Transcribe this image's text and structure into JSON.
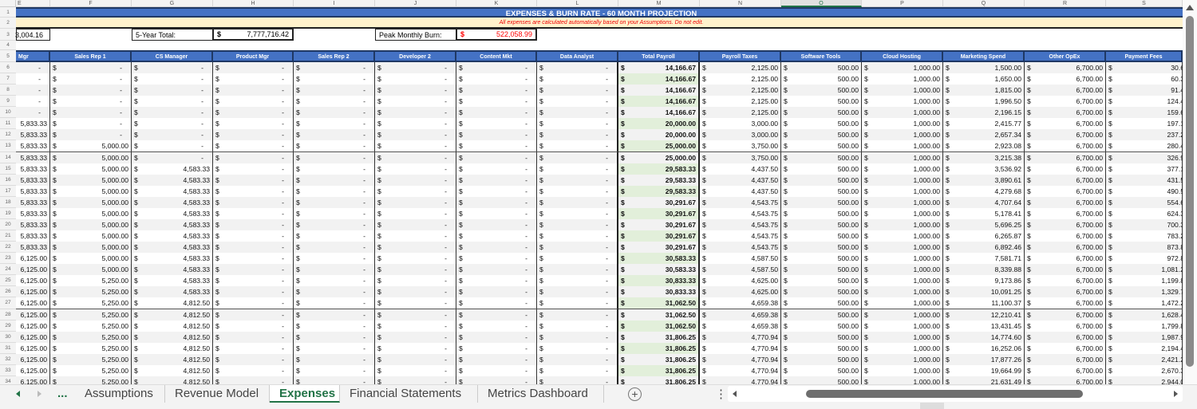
{
  "column_letters": [
    "E",
    "F",
    "G",
    "H",
    "I",
    "J",
    "K",
    "L",
    "M",
    "N",
    "O",
    "P",
    "Q",
    "R",
    "S"
  ],
  "selected_column": "O",
  "title": "EXPENSES & BURN RATE - 60 MONTH PROJECTION",
  "note": "All expenses are calculated automatically based on your Assumptions. Do not edit.",
  "summary": {
    "first_value": "3,004.16",
    "five_year_label": "5-Year Total:",
    "five_year_value": "7,777,716.42",
    "peak_label": "Peak Monthly Burn:",
    "peak_value": "522,058.99",
    "peak_color": "#ff0000"
  },
  "currency_symbol": "$",
  "headers": [
    "Mgr",
    "Sales Rep 1",
    "CS Manager",
    "Product Mgr",
    "Sales Rep 2",
    "Developer 2",
    "Content Mkt",
    "Data Analyst",
    "Total Payroll",
    "Payroll Taxes",
    "Software Tools",
    "Cloud Hosting",
    "Marketing Spend",
    "Other OpEx",
    "Payment Fees"
  ],
  "header_color": "#4472c4",
  "rows": [
    {
      "n": "1"
    },
    {
      "n": "2"
    },
    {
      "n": "3"
    },
    {
      "n": "4"
    },
    {
      "n": "5"
    },
    {
      "n": "6",
      "cells": [
        "-",
        "-",
        "-",
        "-",
        "-",
        "-",
        "-",
        "-",
        "14,166.67",
        "2,125.00",
        "500.00",
        "1,000.00",
        "1,500.00",
        "6,700.00",
        "30.6"
      ]
    },
    {
      "n": "7",
      "cells": [
        "-",
        "-",
        "-",
        "-",
        "-",
        "-",
        "-",
        "-",
        "14,166.67",
        "2,125.00",
        "500.00",
        "1,000.00",
        "1,650.00",
        "6,700.00",
        "60.3"
      ]
    },
    {
      "n": "8",
      "cells": [
        "-",
        "-",
        "-",
        "-",
        "-",
        "-",
        "-",
        "-",
        "14,166.67",
        "2,125.00",
        "500.00",
        "1,000.00",
        "1,815.00",
        "6,700.00",
        "91.4"
      ]
    },
    {
      "n": "9",
      "cells": [
        "-",
        "-",
        "-",
        "-",
        "-",
        "-",
        "-",
        "-",
        "14,166.67",
        "2,125.00",
        "500.00",
        "1,000.00",
        "1,996.50",
        "6,700.00",
        "124.4"
      ]
    },
    {
      "n": "10",
      "cells": [
        "-",
        "-",
        "-",
        "-",
        "-",
        "-",
        "-",
        "-",
        "14,166.67",
        "2,125.00",
        "500.00",
        "1,000.00",
        "2,196.15",
        "6,700.00",
        "159.6"
      ]
    },
    {
      "n": "11",
      "cells": [
        "5,833.33",
        "-",
        "-",
        "-",
        "-",
        "-",
        "-",
        "-",
        "20,000.00",
        "3,000.00",
        "500.00",
        "1,000.00",
        "2,415.77",
        "6,700.00",
        "197.1"
      ]
    },
    {
      "n": "12",
      "cells": [
        "5,833.33",
        "-",
        "-",
        "-",
        "-",
        "-",
        "-",
        "-",
        "20,000.00",
        "3,000.00",
        "500.00",
        "1,000.00",
        "2,657.34",
        "6,700.00",
        "237.2"
      ]
    },
    {
      "n": "13",
      "cells": [
        "5,833.33",
        "5,000.00",
        "-",
        "-",
        "-",
        "-",
        "-",
        "-",
        "25,000.00",
        "3,750.00",
        "500.00",
        "1,000.00",
        "2,923.08",
        "6,700.00",
        "280.4"
      ]
    },
    {
      "n": "14",
      "cells": [
        "5,833.33",
        "5,000.00",
        "-",
        "-",
        "-",
        "-",
        "-",
        "-",
        "25,000.00",
        "3,750.00",
        "500.00",
        "1,000.00",
        "3,215.38",
        "6,700.00",
        "326.9"
      ]
    },
    {
      "n": "15",
      "cells": [
        "5,833.33",
        "5,000.00",
        "4,583.33",
        "-",
        "-",
        "-",
        "-",
        "-",
        "29,583.33",
        "4,437.50",
        "500.00",
        "1,000.00",
        "3,536.92",
        "6,700.00",
        "377.1"
      ]
    },
    {
      "n": "16",
      "cells": [
        "5,833.33",
        "5,000.00",
        "4,583.33",
        "-",
        "-",
        "-",
        "-",
        "-",
        "29,583.33",
        "4,437.50",
        "500.00",
        "1,000.00",
        "3,890.61",
        "6,700.00",
        "431.5"
      ]
    },
    {
      "n": "17",
      "cells": [
        "5,833.33",
        "5,000.00",
        "4,583.33",
        "-",
        "-",
        "-",
        "-",
        "-",
        "29,583.33",
        "4,437.50",
        "500.00",
        "1,000.00",
        "4,279.68",
        "6,700.00",
        "490.5"
      ]
    },
    {
      "n": "18",
      "cells": [
        "5,833.33",
        "5,000.00",
        "4,583.33",
        "-",
        "-",
        "-",
        "-",
        "-",
        "30,291.67",
        "4,543.75",
        "500.00",
        "1,000.00",
        "4,707.64",
        "6,700.00",
        "554.6"
      ]
    },
    {
      "n": "19",
      "cells": [
        "5,833.33",
        "5,000.00",
        "4,583.33",
        "-",
        "-",
        "-",
        "-",
        "-",
        "30,291.67",
        "4,543.75",
        "500.00",
        "1,000.00",
        "5,178.41",
        "6,700.00",
        "624.3"
      ]
    },
    {
      "n": "20",
      "cells": [
        "5,833.33",
        "5,000.00",
        "4,583.33",
        "-",
        "-",
        "-",
        "-",
        "-",
        "30,291.67",
        "4,543.75",
        "500.00",
        "1,000.00",
        "5,696.25",
        "6,700.00",
        "700.3"
      ]
    },
    {
      "n": "21",
      "cells": [
        "5,833.33",
        "5,000.00",
        "4,583.33",
        "-",
        "-",
        "-",
        "-",
        "-",
        "30,291.67",
        "4,543.75",
        "500.00",
        "1,000.00",
        "6,265.87",
        "6,700.00",
        "783.2"
      ]
    },
    {
      "n": "22",
      "cells": [
        "5,833.33",
        "5,000.00",
        "4,583.33",
        "-",
        "-",
        "-",
        "-",
        "-",
        "30,291.67",
        "4,543.75",
        "500.00",
        "1,000.00",
        "6,892.46",
        "6,700.00",
        "873.8"
      ]
    },
    {
      "n": "23",
      "cells": [
        "6,125.00",
        "5,000.00",
        "4,583.33",
        "-",
        "-",
        "-",
        "-",
        "-",
        "30,583.33",
        "4,587.50",
        "500.00",
        "1,000.00",
        "7,581.71",
        "6,700.00",
        "972.8"
      ]
    },
    {
      "n": "24",
      "cells": [
        "6,125.00",
        "5,000.00",
        "4,583.33",
        "-",
        "-",
        "-",
        "-",
        "-",
        "30,583.33",
        "4,587.50",
        "500.00",
        "1,000.00",
        "8,339.88",
        "6,700.00",
        "1,081.2"
      ]
    },
    {
      "n": "25",
      "cells": [
        "6,125.00",
        "5,250.00",
        "4,583.33",
        "-",
        "-",
        "-",
        "-",
        "-",
        "30,833.33",
        "4,625.00",
        "500.00",
        "1,000.00",
        "9,173.86",
        "6,700.00",
        "1,199.8"
      ]
    },
    {
      "n": "26",
      "cells": [
        "6,125.00",
        "5,250.00",
        "4,583.33",
        "-",
        "-",
        "-",
        "-",
        "-",
        "30,833.33",
        "4,625.00",
        "500.00",
        "1,000.00",
        "10,091.25",
        "6,700.00",
        "1,329.7"
      ]
    },
    {
      "n": "27",
      "cells": [
        "6,125.00",
        "5,250.00",
        "4,812.50",
        "-",
        "-",
        "-",
        "-",
        "-",
        "31,062.50",
        "4,659.38",
        "500.00",
        "1,000.00",
        "11,100.37",
        "6,700.00",
        "1,472.2"
      ]
    },
    {
      "n": "28",
      "cells": [
        "6,125.00",
        "5,250.00",
        "4,812.50",
        "-",
        "-",
        "-",
        "-",
        "-",
        "31,062.50",
        "4,659.38",
        "500.00",
        "1,000.00",
        "12,210.41",
        "6,700.00",
        "1,628.4"
      ]
    },
    {
      "n": "29",
      "cells": [
        "6,125.00",
        "5,250.00",
        "4,812.50",
        "-",
        "-",
        "-",
        "-",
        "-",
        "31,062.50",
        "4,659.38",
        "500.00",
        "1,000.00",
        "13,431.45",
        "6,700.00",
        "1,799.8"
      ]
    },
    {
      "n": "30",
      "cells": [
        "6,125.00",
        "5,250.00",
        "4,812.50",
        "-",
        "-",
        "-",
        "-",
        "-",
        "31,806.25",
        "4,770.94",
        "500.00",
        "1,000.00",
        "14,774.60",
        "6,700.00",
        "1,987.9"
      ]
    },
    {
      "n": "31",
      "cells": [
        "6,125.00",
        "5,250.00",
        "4,812.50",
        "-",
        "-",
        "-",
        "-",
        "-",
        "31,806.25",
        "4,770.94",
        "500.00",
        "1,000.00",
        "16,252.06",
        "6,700.00",
        "2,194.4"
      ]
    },
    {
      "n": "32",
      "cells": [
        "6,125.00",
        "5,250.00",
        "4,812.50",
        "-",
        "-",
        "-",
        "-",
        "-",
        "31,806.25",
        "4,770.94",
        "500.00",
        "1,000.00",
        "17,877.26",
        "6,700.00",
        "2,421.2"
      ]
    },
    {
      "n": "33",
      "cells": [
        "6,125.00",
        "5,250.00",
        "4,812.50",
        "-",
        "-",
        "-",
        "-",
        "-",
        "31,806.25",
        "4,770.94",
        "500.00",
        "1,000.00",
        "19,664.99",
        "6,700.00",
        "2,670.3"
      ]
    },
    {
      "n": "34",
      "cells": [
        "6,125.00",
        "5,250.00",
        "4,812.50",
        "-",
        "-",
        "-",
        "-",
        "-",
        "31,806.25",
        "4,770.94",
        "500.00",
        "1,000.00",
        "21,631.49",
        "6,700.00",
        "2,944.0"
      ]
    }
  ],
  "tabs": {
    "more_label": "...",
    "items": [
      {
        "label": "Assumptions",
        "active": false
      },
      {
        "label": "Revenue Model",
        "active": false
      },
      {
        "label": "Expenses",
        "active": true
      },
      {
        "label": "Financial Statements",
        "active": false
      },
      {
        "label": "Metrics Dashboard",
        "active": false
      }
    ],
    "add_label": "+",
    "options_label": "⋮"
  },
  "icons": {
    "prev": "prev-sheet-icon",
    "next": "next-sheet-icon",
    "add": "add-sheet-icon"
  },
  "colors": {
    "accent": "#217346",
    "payroll_fill": "#e2efda",
    "note_fill": "#fff2cc"
  }
}
